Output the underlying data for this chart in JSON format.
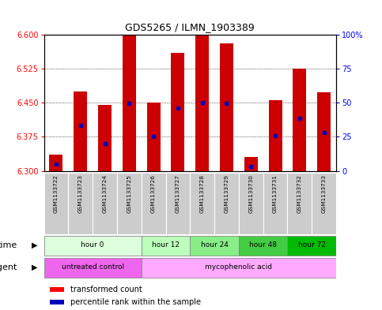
{
  "title": "GDS5265 / ILMN_1903389",
  "samples": [
    "GSM1133722",
    "GSM1133723",
    "GSM1133724",
    "GSM1133725",
    "GSM1133726",
    "GSM1133727",
    "GSM1133728",
    "GSM1133729",
    "GSM1133730",
    "GSM1133731",
    "GSM1133732",
    "GSM1133733"
  ],
  "bar_tops": [
    6.335,
    6.475,
    6.445,
    6.598,
    6.45,
    6.56,
    6.598,
    6.58,
    6.33,
    6.455,
    6.525,
    6.473
  ],
  "bar_bottom": 6.3,
  "blue_dot_values": [
    6.315,
    6.4,
    6.36,
    6.448,
    6.375,
    6.438,
    6.45,
    6.448,
    6.31,
    6.378,
    6.415,
    6.385
  ],
  "ylim": [
    6.3,
    6.6
  ],
  "yticks": [
    6.3,
    6.375,
    6.45,
    6.525,
    6.6
  ],
  "right_yticks": [
    0,
    25,
    50,
    75,
    100
  ],
  "bar_color": "#cc0000",
  "dot_color": "#0000bb",
  "background_color": "#ffffff",
  "time_groups": [
    {
      "label": "hour 0",
      "start": 0,
      "end": 4,
      "color": "#ddffdd"
    },
    {
      "label": "hour 12",
      "start": 4,
      "end": 6,
      "color": "#bbffbb"
    },
    {
      "label": "hour 24",
      "start": 6,
      "end": 8,
      "color": "#88ee88"
    },
    {
      "label": "hour 48",
      "start": 8,
      "end": 10,
      "color": "#44cc44"
    },
    {
      "label": "hour 72",
      "start": 10,
      "end": 12,
      "color": "#00bb00"
    }
  ],
  "agent_groups": [
    {
      "label": "untreated control",
      "start": 0,
      "end": 4,
      "color": "#ee66ee"
    },
    {
      "label": "mycophenolic acid",
      "start": 4,
      "end": 12,
      "color": "#ffaaff"
    }
  ],
  "xlabel_time": "time",
  "xlabel_agent": "agent",
  "sample_bg": "#cccccc"
}
